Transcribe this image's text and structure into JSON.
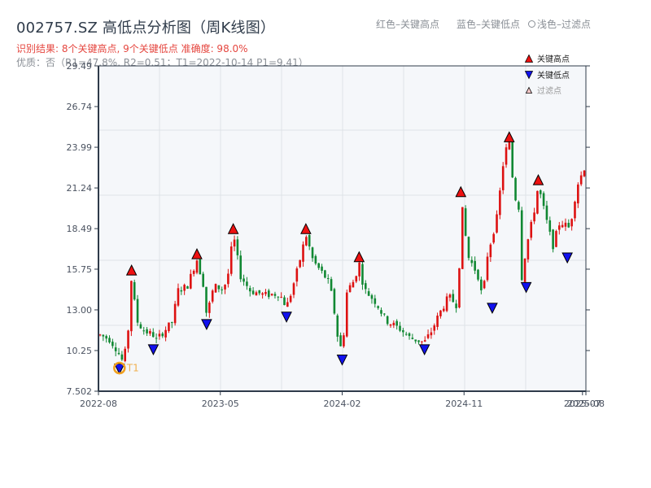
{
  "header": {
    "title": "002757.SZ 高低点分析图（周K线图）",
    "result_line": "识别结果: 8个关键高点, 9个关键低点  准确度: 98.0%",
    "quality_line": "优质：否（R1=47.8%, R2=0.51；T1=2022-10-14 P1=9.41）"
  },
  "top_legend": {
    "red_label": "红色–关键高点",
    "blue_label": "蓝色–关键低点",
    "filtered_label": "浅色–过滤点"
  },
  "plot_legend": {
    "items": [
      {
        "label": "关键高点",
        "marker": "triangle-up",
        "color": "#ee1111"
      },
      {
        "label": "关键低点",
        "marker": "triangle-down",
        "color": "#1111ee"
      },
      {
        "label": "过滤点",
        "marker": "triangle-up",
        "color": "#f8c8c8"
      }
    ]
  },
  "colors": {
    "up": "#dd1111",
    "down": "#118833",
    "plot_bg": "#f5f7fa",
    "grid": "#dfe3e8",
    "axis": "#2f3b4a",
    "t1_marker": "#f0a020"
  },
  "t1_label": "T1",
  "chart_data": {
    "type": "candlestick",
    "title": "002757.SZ 高低点分析图（周K线图）",
    "xlabel": "",
    "ylabel": "",
    "ylim": [
      7.502,
      29.49
    ],
    "y_ticks": [
      "7.502",
      "10.25",
      "13.00",
      "15.75",
      "18.49",
      "21.24",
      "23.99",
      "26.74",
      "29.49"
    ],
    "y_tick_values": [
      7.502,
      10.25,
      13.0,
      15.75,
      18.49,
      21.24,
      23.99,
      26.74,
      29.49
    ],
    "x_ticks": [
      "2022-08",
      "2023-05",
      "2024-02",
      "2024-11",
      "2025-07",
      "2025-08"
    ],
    "x_tick_positions": [
      0,
      0.25,
      0.5,
      0.75,
      0.993,
      1.0
    ],
    "grid": true,
    "price_path": [
      [
        0.0,
        11.3
      ],
      [
        0.02,
        11.0
      ],
      [
        0.035,
        10.3
      ],
      [
        0.045,
        9.6
      ],
      [
        0.055,
        10.4
      ],
      [
        0.06,
        12.5
      ],
      [
        0.065,
        15.3
      ],
      [
        0.075,
        12.3
      ],
      [
        0.09,
        11.6
      ],
      [
        0.11,
        11.3
      ],
      [
        0.115,
        10.9
      ],
      [
        0.13,
        11.5
      ],
      [
        0.15,
        12.2
      ],
      [
        0.16,
        14.3
      ],
      [
        0.18,
        14.6
      ],
      [
        0.195,
        16.0
      ],
      [
        0.2,
        16.4
      ],
      [
        0.215,
        14.5
      ],
      [
        0.22,
        12.6
      ],
      [
        0.235,
        14.6
      ],
      [
        0.255,
        14.4
      ],
      [
        0.265,
        15.5
      ],
      [
        0.275,
        18.1
      ],
      [
        0.29,
        15.3
      ],
      [
        0.31,
        14.3
      ],
      [
        0.34,
        14.0
      ],
      [
        0.37,
        14.1
      ],
      [
        0.385,
        13.2
      ],
      [
        0.395,
        14.2
      ],
      [
        0.41,
        16.0
      ],
      [
        0.425,
        18.1
      ],
      [
        0.44,
        16.3
      ],
      [
        0.47,
        15.0
      ],
      [
        0.48,
        13.8
      ],
      [
        0.49,
        11.3
      ],
      [
        0.5,
        10.1
      ],
      [
        0.51,
        14.3
      ],
      [
        0.525,
        15.0
      ],
      [
        0.535,
        16.2
      ],
      [
        0.545,
        14.4
      ],
      [
        0.57,
        13.5
      ],
      [
        0.59,
        12.3
      ],
      [
        0.62,
        11.7
      ],
      [
        0.64,
        11.1
      ],
      [
        0.67,
        10.8
      ],
      [
        0.685,
        11.6
      ],
      [
        0.7,
        12.7
      ],
      [
        0.72,
        13.9
      ],
      [
        0.74,
        13.2
      ],
      [
        0.745,
        20.6
      ],
      [
        0.76,
        16.6
      ],
      [
        0.78,
        15.4
      ],
      [
        0.79,
        13.7
      ],
      [
        0.8,
        16.7
      ],
      [
        0.82,
        19.3
      ],
      [
        0.835,
        23.6
      ],
      [
        0.845,
        24.3
      ],
      [
        0.855,
        20.8
      ],
      [
        0.865,
        19.9
      ],
      [
        0.87,
        15.0
      ],
      [
        0.88,
        17.2
      ],
      [
        0.895,
        19.4
      ],
      [
        0.905,
        21.4
      ],
      [
        0.92,
        19.3
      ],
      [
        0.935,
        17.3
      ],
      [
        0.95,
        19.0
      ],
      [
        0.97,
        18.5
      ],
      [
        0.985,
        21.4
      ],
      [
        1.0,
        22.6
      ]
    ],
    "key_highs": [
      {
        "t": 0.065,
        "price": 15.3
      },
      {
        "t": 0.2,
        "price": 16.4
      },
      {
        "t": 0.275,
        "price": 18.1
      },
      {
        "t": 0.425,
        "price": 18.1
      },
      {
        "t": 0.535,
        "price": 16.2
      },
      {
        "t": 0.745,
        "price": 20.6
      },
      {
        "t": 0.845,
        "price": 24.3
      },
      {
        "t": 0.905,
        "price": 21.4
      }
    ],
    "key_lows": [
      {
        "t": 0.04,
        "price": 9.4
      },
      {
        "t": 0.11,
        "price": 10.7
      },
      {
        "t": 0.22,
        "price": 12.4
      },
      {
        "t": 0.385,
        "price": 12.9
      },
      {
        "t": 0.5,
        "price": 10.0
      },
      {
        "t": 0.67,
        "price": 10.7
      },
      {
        "t": 0.81,
        "price": 13.5
      },
      {
        "t": 0.88,
        "price": 14.9
      },
      {
        "t": 0.965,
        "price": 16.9
      }
    ],
    "t1_point": {
      "t": 0.04,
      "price": 9.4,
      "date": "2022-10-14"
    },
    "n_candles": 156
  }
}
